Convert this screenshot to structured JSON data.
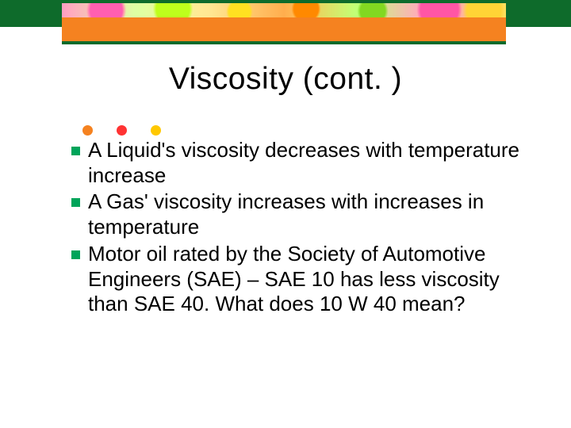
{
  "slide": {
    "title": "Viscosity (cont. )",
    "title_fontsize": 39,
    "title_color": "#000000",
    "accent_dots": {
      "colors": [
        "#F58220",
        "#FF3333",
        "#FFC800"
      ],
      "diameter": 13
    },
    "bullets": [
      {
        "text": "A Liquid's viscosity decreases with temperature increase",
        "marker_color": "#00A45A"
      },
      {
        "text": "A Gas' viscosity increases with increases in temperature",
        "marker_color": "#00A45A"
      },
      {
        "text": "Motor oil rated by the Society of Automotive Engineers (SAE) – SAE 10 has less viscosity than SAE 40.  What does 10 W 40 mean?",
        "marker_color": "#00A45A"
      }
    ],
    "body_fontsize": 26,
    "body_color": "#000000",
    "top_band": {
      "green": "#0E6B2B",
      "orange": "#F58220",
      "underline": "#0E6B2B"
    },
    "background_color": "#ffffff"
  }
}
